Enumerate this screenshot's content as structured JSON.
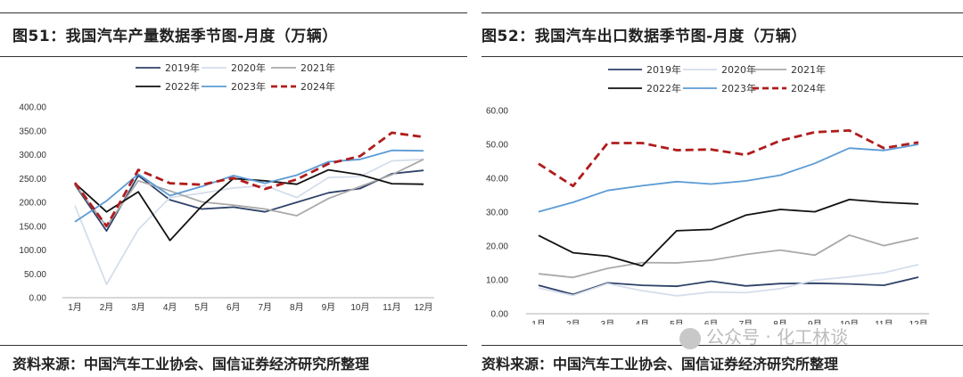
{
  "charts": [
    {
      "title": "图51：我国汽车产量数据季节图-月度（万辆）",
      "source": "资料来源：中国汽车工业协会、国信证券经济研究所整理"
    },
    {
      "title": "图52：我国汽车出口数据季节图-月度（万辆）",
      "source": "资料来源：中国汽车工业协会、国信证券经济研究所整理"
    }
  ],
  "watermark": "公众号 · 化工林谈",
  "chart_data": [
    {
      "type": "line",
      "categories": [
        "1月",
        "2月",
        "3月",
        "4月",
        "5月",
        "6月",
        "7月",
        "8月",
        "9月",
        "10月",
        "11月",
        "12月"
      ],
      "ylim": [
        0,
        400
      ],
      "yticks": [
        "0.00",
        "50.00",
        "100.00",
        "150.00",
        "200.00",
        "250.00",
        "300.00",
        "350.00",
        "400.00"
      ],
      "ytick_values": [
        0,
        50,
        100,
        150,
        200,
        250,
        300,
        350,
        400
      ],
      "grid": false,
      "legend_position": "top",
      "series": [
        {
          "name": "2019年",
          "color": "#2e4268",
          "dash": "solid",
          "width": 1.8,
          "values": [
            237,
            140,
            256,
            205,
            186,
            190,
            180,
            200,
            220,
            229,
            260,
            267
          ]
        },
        {
          "name": "2020年",
          "color": "#d5deeb",
          "dash": "solid",
          "width": 1.8,
          "values": [
            193,
            28,
            143,
            210,
            219,
            230,
            235,
            210,
            252,
            254,
            287,
            290
          ]
        },
        {
          "name": "2021年",
          "color": "#a9a9a9",
          "dash": "solid",
          "width": 1.8,
          "values": [
            238,
            150,
            245,
            224,
            201,
            194,
            186,
            172,
            208,
            233,
            258,
            290
          ]
        },
        {
          "name": "2022年",
          "color": "#111111",
          "dash": "solid",
          "width": 1.8,
          "values": [
            240,
            180,
            222,
            120,
            192,
            250,
            245,
            238,
            268,
            258,
            239,
            238
          ]
        },
        {
          "name": "2023年",
          "color": "#5b9bd5",
          "dash": "solid",
          "width": 1.8,
          "values": [
            159,
            203,
            259,
            214,
            233,
            256,
            240,
            257,
            285,
            290,
            309,
            308
          ]
        },
        {
          "name": "2024年",
          "color": "#b01c1c",
          "dash": "dash",
          "width": 2.8,
          "values": [
            241,
            150,
            268,
            240,
            237,
            251,
            228,
            248,
            281,
            297,
            346,
            337
          ]
        }
      ]
    },
    {
      "type": "line",
      "categories": [
        "1月",
        "2月",
        "3月",
        "4月",
        "5月",
        "6月",
        "7月",
        "8月",
        "9月",
        "10月",
        "11月",
        "12月"
      ],
      "ylim": [
        0,
        60
      ],
      "yticks": [
        "0.00",
        "10.00",
        "20.00",
        "30.00",
        "40.00",
        "50.00",
        "60.00"
      ],
      "ytick_values": [
        0,
        10,
        20,
        30,
        40,
        50,
        60
      ],
      "grid": false,
      "legend_position": "top",
      "series": [
        {
          "name": "2019年",
          "color": "#2e4268",
          "dash": "solid",
          "width": 1.8,
          "values": [
            8.4,
            5.7,
            9.1,
            8.4,
            8.1,
            9.6,
            8.2,
            8.9,
            9.0,
            8.8,
            8.4,
            10.8
          ]
        },
        {
          "name": "2020年",
          "color": "#d5deeb",
          "dash": "solid",
          "width": 1.8,
          "values": [
            7.6,
            5.4,
            8.9,
            6.8,
            5.3,
            6.4,
            6.2,
            7.4,
            9.9,
            10.9,
            12.1,
            14.5
          ]
        },
        {
          "name": "2021年",
          "color": "#a9a9a9",
          "dash": "solid",
          "width": 1.8,
          "values": [
            11.8,
            10.7,
            13.4,
            15.1,
            15.0,
            15.8,
            17.5,
            18.8,
            17.3,
            23.2,
            20.1,
            22.4
          ]
        },
        {
          "name": "2022年",
          "color": "#111111",
          "dash": "solid",
          "width": 1.8,
          "values": [
            23.1,
            18.0,
            17.0,
            14.1,
            24.5,
            24.9,
            29.1,
            30.8,
            30.1,
            33.7,
            32.9,
            32.4
          ]
        },
        {
          "name": "2023年",
          "color": "#5b9bd5",
          "dash": "solid",
          "width": 1.8,
          "values": [
            30.1,
            32.9,
            36.4,
            37.8,
            39.0,
            38.3,
            39.2,
            40.9,
            44.4,
            48.9,
            48.2,
            50.0
          ]
        },
        {
          "name": "2024年",
          "color": "#b01c1c",
          "dash": "dash",
          "width": 2.8,
          "values": [
            44.3,
            37.7,
            50.4,
            50.4,
            48.3,
            48.5,
            46.9,
            51.1,
            53.6,
            54.1,
            48.9,
            50.6
          ]
        }
      ]
    }
  ]
}
